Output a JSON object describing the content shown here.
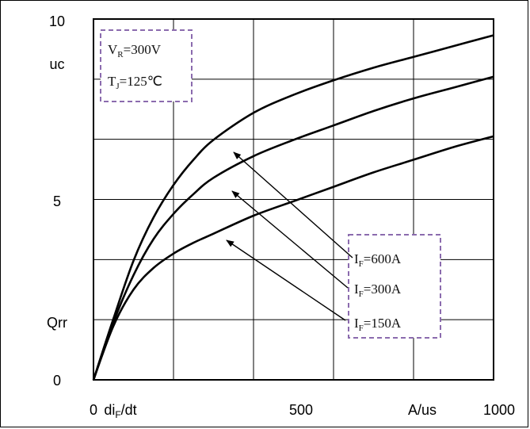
{
  "chart_data": {
    "type": "line",
    "xlim": [
      0,
      1000
    ],
    "ylim": [
      0,
      10
    ],
    "grid": true,
    "x_tick_labels": [
      "0",
      "diF/dt",
      "500",
      "A/us",
      "1000"
    ],
    "y_tick_labels": [
      "10",
      "uc",
      "5",
      "Qrr",
      "0"
    ],
    "conditions": {
      "vr": "VR=300V",
      "tj": "TJ=125℃"
    },
    "series": [
      {
        "name": "IF=600A",
        "x": [
          0,
          50,
          100,
          150,
          200,
          250,
          300,
          400,
          500,
          600,
          700,
          800,
          900,
          1000
        ],
        "y": [
          0,
          1.7,
          3.3,
          4.5,
          5.4,
          6.1,
          6.65,
          7.4,
          7.9,
          8.3,
          8.65,
          8.95,
          9.25,
          9.55
        ]
      },
      {
        "name": "IF=300A",
        "x": [
          0,
          50,
          100,
          150,
          200,
          250,
          300,
          400,
          500,
          600,
          700,
          800,
          900,
          1000
        ],
        "y": [
          0,
          1.6,
          2.9,
          3.9,
          4.6,
          5.15,
          5.6,
          6.2,
          6.65,
          7.05,
          7.45,
          7.8,
          8.1,
          8.4
        ]
      },
      {
        "name": "IF=150A",
        "x": [
          0,
          50,
          100,
          150,
          200,
          250,
          300,
          400,
          500,
          600,
          700,
          800,
          900,
          1000
        ],
        "y": [
          0,
          1.5,
          2.5,
          3.1,
          3.5,
          3.8,
          4.05,
          4.55,
          4.95,
          5.35,
          5.75,
          6.1,
          6.45,
          6.75
        ]
      }
    ],
    "legend": [
      {
        "base": "I",
        "sub": "F",
        "rest": "=600A"
      },
      {
        "base": "I",
        "sub": "F",
        "rest": "=300A"
      },
      {
        "base": "I",
        "sub": "F",
        "rest": "=150A"
      }
    ],
    "annotation_box_color": "#8B6BAE"
  }
}
